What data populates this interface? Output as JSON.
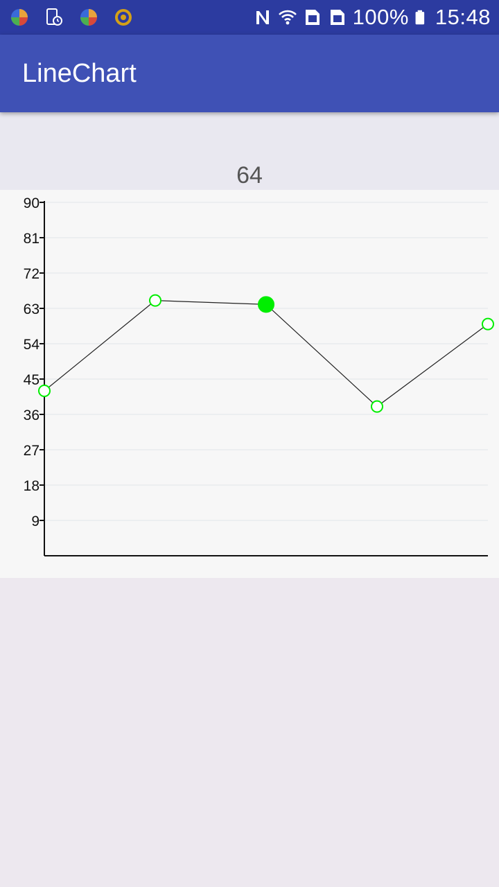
{
  "status_bar": {
    "left_icons": [
      "browser-icon",
      "screen-timer-icon",
      "browser-icon",
      "settings-icon"
    ],
    "right_icons": [
      "nfc-icon",
      "wifi-icon",
      "sim1-icon",
      "sim2-icon",
      "battery-icon"
    ],
    "battery": "100%",
    "time": "15:48"
  },
  "app_bar": {
    "title": "LineChart"
  },
  "selected_value": "64",
  "colors": {
    "status_bar": "#2c3ba0",
    "app_bar": "#3f51b5",
    "point": "#00ee00",
    "line": "#222222"
  },
  "chart_data": {
    "type": "line",
    "title": "",
    "xlabel": "",
    "ylabel": "",
    "ylim": [
      0,
      90
    ],
    "y_ticks": [
      "9",
      "18",
      "27",
      "36",
      "45",
      "54",
      "63",
      "72",
      "81",
      "90"
    ],
    "x": [
      0,
      1,
      2,
      3,
      4
    ],
    "series": [
      {
        "values": [
          42,
          65,
          64,
          38,
          59
        ]
      }
    ],
    "selected_index": 2,
    "grid": true,
    "legend": "none"
  }
}
